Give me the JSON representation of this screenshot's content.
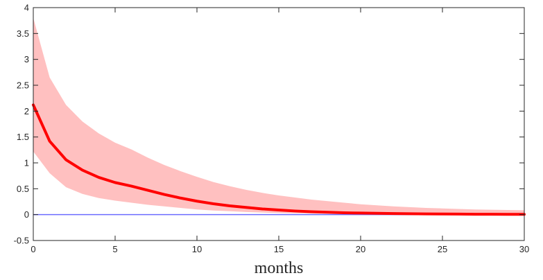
{
  "chart_data": {
    "type": "line",
    "title": "",
    "xlabel": "months",
    "ylabel": "",
    "xlim": [
      0,
      30
    ],
    "ylim": [
      -0.5,
      4
    ],
    "xticks": [
      0,
      5,
      10,
      15,
      20,
      25,
      30
    ],
    "yticks": [
      -0.5,
      0,
      0.5,
      1,
      1.5,
      2,
      2.5,
      3,
      3.5,
      4
    ],
    "grid": false,
    "x": [
      0,
      1,
      2,
      3,
      4,
      5,
      6,
      7,
      8,
      9,
      10,
      11,
      12,
      13,
      14,
      15,
      16,
      17,
      18,
      19,
      20,
      21,
      22,
      23,
      24,
      25,
      26,
      27,
      28,
      29,
      30
    ],
    "series": [
      {
        "role": "estimate",
        "color": "#ff0000",
        "values": [
          2.12,
          1.42,
          1.06,
          0.86,
          0.72,
          0.62,
          0.55,
          0.47,
          0.39,
          0.32,
          0.26,
          0.21,
          0.17,
          0.14,
          0.11,
          0.09,
          0.07,
          0.055,
          0.045,
          0.035,
          0.03,
          0.025,
          0.02,
          0.017,
          0.014,
          0.012,
          0.01,
          0.008,
          0.007,
          0.006,
          0.005
        ]
      },
      {
        "role": "zero-line",
        "color": "#6b6bff",
        "values": [
          0,
          0,
          0,
          0,
          0,
          0,
          0,
          0,
          0,
          0,
          0,
          0,
          0,
          0,
          0,
          0,
          0,
          0,
          0,
          0,
          0,
          0,
          0,
          0,
          0,
          0,
          0,
          0,
          0,
          0,
          0
        ]
      }
    ],
    "band": {
      "color": "#ffc0c0",
      "upper": [
        3.8,
        2.65,
        2.12,
        1.8,
        1.57,
        1.39,
        1.26,
        1.1,
        0.96,
        0.84,
        0.73,
        0.63,
        0.55,
        0.48,
        0.42,
        0.37,
        0.33,
        0.29,
        0.26,
        0.23,
        0.2,
        0.18,
        0.16,
        0.145,
        0.13,
        0.12,
        0.11,
        0.1,
        0.095,
        0.09,
        0.085
      ],
      "lower": [
        1.22,
        0.8,
        0.53,
        0.4,
        0.32,
        0.27,
        0.23,
        0.19,
        0.16,
        0.13,
        0.1,
        0.08,
        0.065,
        0.05,
        0.04,
        0.03,
        0.025,
        0.02,
        0.015,
        0.01,
        0.008,
        0.005,
        0.003,
        0.002,
        0.001,
        0.0,
        -0.002,
        -0.003,
        -0.004,
        -0.005,
        -0.006
      ]
    }
  }
}
